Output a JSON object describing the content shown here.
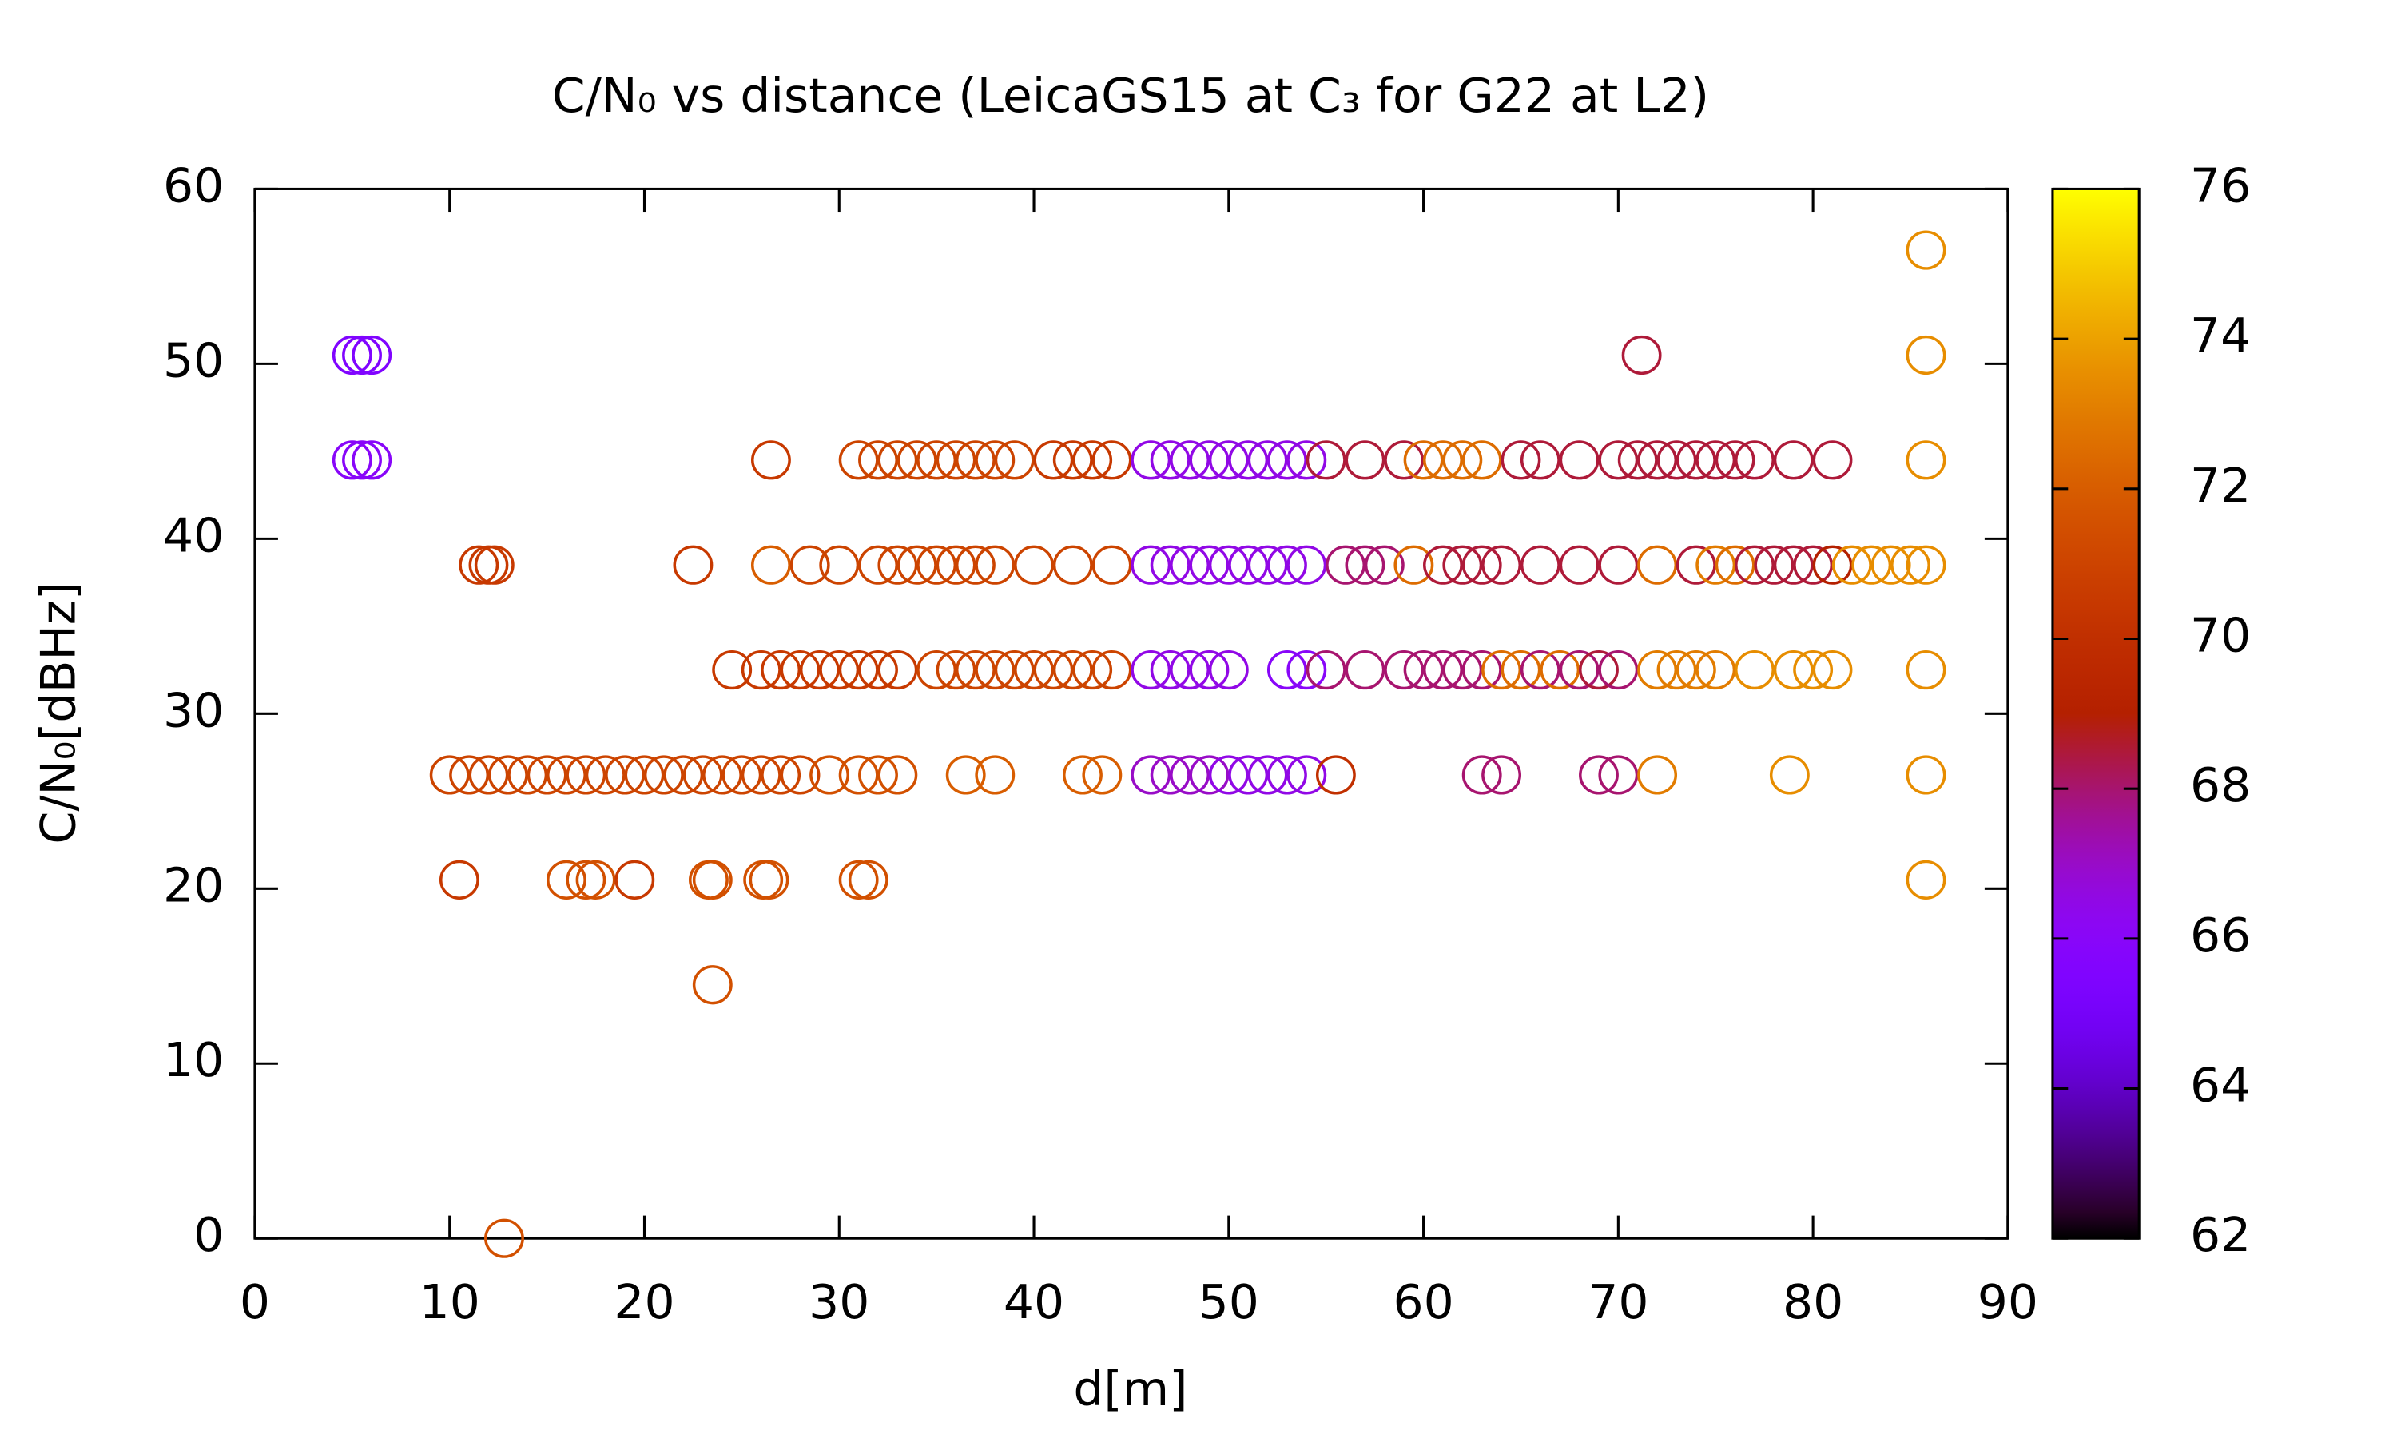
{
  "chart_data": {
    "type": "scatter",
    "title": "C/N₀ vs distance (LeicaGS15 at C₃ for G22 at L2)",
    "xlabel": "d[m]",
    "ylabel": "C/N₀[dBHz]",
    "xlim": [
      0,
      90
    ],
    "xticks": [
      0,
      10,
      20,
      30,
      40,
      50,
      60,
      70,
      80,
      90
    ],
    "ylim": [
      0,
      60
    ],
    "yticks": [
      0,
      10,
      20,
      30,
      40,
      50,
      60
    ],
    "palette": "gnuplot",
    "cblim": [
      62,
      76
    ],
    "cbticks": [
      62,
      64,
      66,
      68,
      70,
      72,
      74,
      76
    ],
    "x": [
      85.8,
      5,
      5.5,
      6,
      71.2,
      85.8,
      5,
      5.5,
      6,
      26.5,
      31,
      32,
      33,
      34,
      35,
      36,
      37,
      38,
      39,
      41,
      42,
      43,
      44,
      46,
      47,
      48,
      49,
      50,
      51,
      52,
      53,
      54,
      55,
      57,
      59,
      60,
      61,
      62,
      63,
      65,
      66,
      68,
      70,
      71,
      72,
      73,
      74,
      75,
      76,
      77,
      79,
      81,
      85.8,
      11.5,
      12,
      12.3,
      22.5,
      26.5,
      28.5,
      30,
      32,
      33,
      34,
      35,
      36,
      37,
      38,
      40,
      42,
      44,
      46,
      47,
      48,
      49,
      50,
      51,
      52,
      53,
      54,
      56,
      57,
      58,
      59.5,
      61,
      62,
      63,
      64,
      66,
      68,
      70,
      72,
      74,
      75,
      76,
      77,
      78,
      79,
      80,
      81,
      82,
      83,
      84,
      85,
      85.8,
      24.5,
      26,
      27,
      28,
      29,
      30,
      31,
      32,
      33,
      35,
      36,
      37,
      38,
      39,
      40,
      41,
      42,
      43,
      44,
      46,
      47,
      48,
      49,
      50,
      53,
      54,
      55,
      57,
      59,
      60,
      61,
      62,
      63,
      64,
      65,
      66,
      67,
      68,
      69,
      70,
      72,
      73,
      74,
      75,
      77,
      79,
      80,
      81,
      85.8,
      10,
      11,
      12,
      13,
      14,
      15,
      16,
      17,
      18,
      19,
      20,
      21,
      22,
      23,
      24,
      25,
      26,
      27,
      28,
      29.5,
      31,
      32,
      33,
      36.5,
      38,
      42.5,
      43.5,
      46,
      47,
      48,
      49,
      50,
      51,
      52,
      53,
      54,
      55.5,
      63,
      64,
      69,
      70,
      72,
      78.8,
      85.8,
      10.5,
      16,
      17,
      17.5,
      19.5,
      23.3,
      23.5,
      26.1,
      26.4,
      31,
      31.5,
      85.8,
      23.5,
      12.8
    ],
    "values": [
      56.5,
      50.5,
      50.5,
      50.5,
      50.5,
      50.5,
      44.5,
      44.5,
      44.5,
      44.5,
      44.5,
      44.5,
      44.5,
      44.5,
      44.5,
      44.5,
      44.5,
      44.5,
      44.5,
      44.5,
      44.5,
      44.5,
      44.5,
      44.5,
      44.5,
      44.5,
      44.5,
      44.5,
      44.5,
      44.5,
      44.5,
      44.5,
      44.5,
      44.5,
      44.5,
      44.5,
      44.5,
      44.5,
      44.5,
      44.5,
      44.5,
      44.5,
      44.5,
      44.5,
      44.5,
      44.5,
      44.5,
      44.5,
      44.5,
      44.5,
      44.5,
      44.5,
      44.5,
      38.5,
      38.5,
      38.5,
      38.5,
      38.5,
      38.5,
      38.5,
      38.5,
      38.5,
      38.5,
      38.5,
      38.5,
      38.5,
      38.5,
      38.5,
      38.5,
      38.5,
      38.5,
      38.5,
      38.5,
      38.5,
      38.5,
      38.5,
      38.5,
      38.5,
      38.5,
      38.5,
      38.5,
      38.5,
      38.5,
      38.5,
      38.5,
      38.5,
      38.5,
      38.5,
      38.5,
      38.5,
      38.5,
      38.5,
      38.5,
      38.5,
      38.5,
      38.5,
      38.5,
      38.5,
      38.5,
      38.5,
      38.5,
      38.5,
      38.5,
      38.5,
      32.5,
      32.5,
      32.5,
      32.5,
      32.5,
      32.5,
      32.5,
      32.5,
      32.5,
      32.5,
      32.5,
      32.5,
      32.5,
      32.5,
      32.5,
      32.5,
      32.5,
      32.5,
      32.5,
      32.5,
      32.5,
      32.5,
      32.5,
      32.5,
      32.5,
      32.5,
      32.5,
      32.5,
      32.5,
      32.5,
      32.5,
      32.5,
      32.5,
      32.5,
      32.5,
      32.5,
      32.5,
      32.5,
      32.5,
      32.5,
      32.5,
      32.5,
      32.5,
      32.5,
      32.5,
      32.5,
      32.5,
      32.5,
      32.5,
      26.5,
      26.5,
      26.5,
      26.5,
      26.5,
      26.5,
      26.5,
      26.5,
      26.5,
      26.5,
      26.5,
      26.5,
      26.5,
      26.5,
      26.5,
      26.5,
      26.5,
      26.5,
      26.5,
      26.5,
      26.5,
      26.5,
      26.5,
      26.5,
      26.5,
      26.5,
      26.5,
      26.5,
      26.5,
      26.5,
      26.5,
      26.5,
      26.5,
      26.5,
      26.5,
      26.5,
      26.5,
      26.5,
      26.5,
      26.5,
      26.5,
      26.5,
      26.5,
      26.5,
      20.5,
      20.5,
      20.5,
      20.5,
      20.5,
      20.5,
      20.5,
      20.5,
      20.5,
      20.5,
      20.5,
      20.5,
      14.5,
      0
    ],
    "color_values": [
      73.5,
      65.5,
      65.5,
      65.5,
      68.5,
      73.5,
      66,
      66,
      66,
      70.5,
      71,
      71,
      71,
      71,
      71,
      71,
      71,
      71,
      71,
      70.5,
      70.5,
      70.5,
      70.5,
      66.5,
      66.5,
      66.5,
      66.5,
      66.5,
      66.5,
      66.5,
      66.5,
      66.5,
      68.5,
      68.5,
      68.5,
      72.5,
      72.5,
      72.5,
      72.5,
      68.5,
      68.5,
      68.5,
      68.5,
      68.5,
      68.5,
      68.5,
      68.5,
      68.5,
      68.5,
      68.5,
      68.5,
      68.5,
      73.5,
      70.5,
      70.5,
      70.5,
      70.5,
      72,
      71,
      71,
      71,
      71,
      71,
      71,
      71,
      71,
      71,
      71,
      71,
      71,
      66.5,
      66.5,
      66.5,
      66.5,
      66.5,
      66.5,
      66.5,
      66.5,
      66.5,
      68,
      68,
      68,
      72.5,
      68.5,
      68.5,
      68.5,
      68.5,
      68.5,
      68.5,
      68.5,
      72.5,
      68.5,
      73,
      72.5,
      68.5,
      68.5,
      68.5,
      68.5,
      69,
      73.5,
      73.5,
      73.5,
      73.5,
      73.5,
      70.5,
      70.5,
      70.5,
      70.5,
      70.5,
      70.5,
      70.5,
      70.5,
      70.5,
      71,
      71,
      71,
      71,
      71,
      71,
      71,
      71,
      71,
      71,
      66.5,
      66.5,
      66.5,
      66.5,
      66.5,
      66,
      66,
      68,
      68,
      68,
      68,
      68,
      68,
      68,
      72.5,
      72.5,
      68,
      72.5,
      68,
      68.5,
      68,
      73,
      73,
      73,
      73,
      73.5,
      73.5,
      73.5,
      73.5,
      73.5,
      71,
      71,
      71,
      71,
      71,
      71,
      71,
      71,
      71,
      71,
      71,
      71,
      71,
      71,
      71,
      71,
      71,
      71,
      71,
      71.5,
      71.5,
      71.5,
      71.5,
      72,
      72,
      72,
      72,
      67,
      67,
      67,
      67,
      66.5,
      66.5,
      66.5,
      66.5,
      66.5,
      70,
      68,
      68,
      68,
      68,
      73,
      73.5,
      73.5,
      70.5,
      71.5,
      71.5,
      71.5,
      70.5,
      71.5,
      71.5,
      71.5,
      71.5,
      71.5,
      71.5,
      73.5,
      71.5,
      71.5
    ]
  }
}
